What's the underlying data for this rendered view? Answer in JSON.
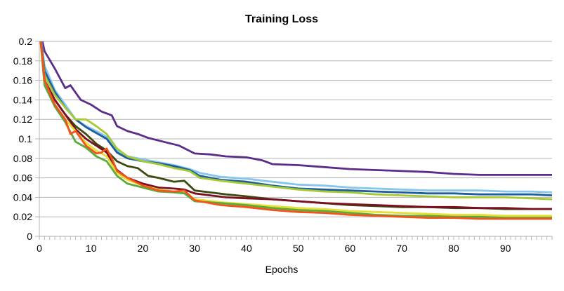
{
  "chart_data": {
    "type": "line",
    "title": "Training Loss",
    "xlabel": "Epochs",
    "ylabel": "",
    "xlim": [
      0,
      99
    ],
    "ylim": [
      0,
      0.2
    ],
    "x_ticks": [
      0,
      10,
      20,
      30,
      40,
      50,
      60,
      70,
      80,
      90
    ],
    "x_tick_labels": [
      "0",
      "10",
      "20",
      "30",
      "40",
      "50",
      "60",
      "70",
      "80",
      "90"
    ],
    "y_ticks": [
      0,
      0.02,
      0.04,
      0.06,
      0.08,
      0.1,
      0.12,
      0.14,
      0.16,
      0.18,
      0.2
    ],
    "y_tick_labels": [
      "0",
      "0.02",
      "0.04",
      "0.06",
      "0.08",
      "0.1",
      "0.12",
      "0.14",
      "0.16",
      "0.18",
      "0.2"
    ],
    "grid": true,
    "legend": "none",
    "series": [
      {
        "color": "#5b2c8a",
        "values": [
          [
            0,
            0.215
          ],
          [
            1,
            0.19
          ],
          [
            3,
            0.172
          ],
          [
            5,
            0.152
          ],
          [
            6,
            0.155
          ],
          [
            8,
            0.14
          ],
          [
            10,
            0.135
          ],
          [
            12,
            0.128
          ],
          [
            14,
            0.124
          ],
          [
            15,
            0.113
          ],
          [
            17,
            0.108
          ],
          [
            19,
            0.105
          ],
          [
            21,
            0.101
          ],
          [
            24,
            0.097
          ],
          [
            27,
            0.093
          ],
          [
            30,
            0.085
          ],
          [
            33,
            0.084
          ],
          [
            36,
            0.082
          ],
          [
            40,
            0.081
          ],
          [
            43,
            0.078
          ],
          [
            45,
            0.074
          ],
          [
            50,
            0.073
          ],
          [
            55,
            0.071
          ],
          [
            60,
            0.069
          ],
          [
            65,
            0.068
          ],
          [
            70,
            0.067
          ],
          [
            75,
            0.066
          ],
          [
            80,
            0.064
          ],
          [
            85,
            0.063
          ],
          [
            90,
            0.063
          ],
          [
            95,
            0.063
          ],
          [
            99,
            0.063
          ]
        ]
      },
      {
        "color": "#86c5ee",
        "values": [
          [
            0,
            0.215
          ],
          [
            1,
            0.175
          ],
          [
            3,
            0.15
          ],
          [
            5,
            0.135
          ],
          [
            7,
            0.12
          ],
          [
            9,
            0.113
          ],
          [
            11,
            0.108
          ],
          [
            13,
            0.102
          ],
          [
            15,
            0.088
          ],
          [
            17,
            0.082
          ],
          [
            20,
            0.079
          ],
          [
            23,
            0.076
          ],
          [
            26,
            0.073
          ],
          [
            29,
            0.069
          ],
          [
            31,
            0.065
          ],
          [
            35,
            0.061
          ],
          [
            40,
            0.059
          ],
          [
            45,
            0.056
          ],
          [
            50,
            0.053
          ],
          [
            55,
            0.052
          ],
          [
            60,
            0.05
          ],
          [
            65,
            0.049
          ],
          [
            70,
            0.048
          ],
          [
            75,
            0.047
          ],
          [
            80,
            0.047
          ],
          [
            85,
            0.047
          ],
          [
            90,
            0.046
          ],
          [
            95,
            0.046
          ],
          [
            99,
            0.045
          ]
        ]
      },
      {
        "color": "#1d5f9c",
        "values": [
          [
            0,
            0.215
          ],
          [
            1,
            0.17
          ],
          [
            3,
            0.148
          ],
          [
            5,
            0.132
          ],
          [
            7,
            0.12
          ],
          [
            9,
            0.112
          ],
          [
            11,
            0.106
          ],
          [
            13,
            0.1
          ],
          [
            15,
            0.086
          ],
          [
            17,
            0.08
          ],
          [
            20,
            0.077
          ],
          [
            23,
            0.075
          ],
          [
            26,
            0.072
          ],
          [
            29,
            0.068
          ],
          [
            31,
            0.062
          ],
          [
            35,
            0.058
          ],
          [
            40,
            0.056
          ],
          [
            45,
            0.052
          ],
          [
            50,
            0.049
          ],
          [
            55,
            0.048
          ],
          [
            60,
            0.047
          ],
          [
            65,
            0.046
          ],
          [
            70,
            0.045
          ],
          [
            75,
            0.044
          ],
          [
            80,
            0.044
          ],
          [
            85,
            0.043
          ],
          [
            90,
            0.043
          ],
          [
            95,
            0.043
          ],
          [
            99,
            0.042
          ]
        ]
      },
      {
        "color": "#a7c934",
        "values": [
          [
            0,
            0.215
          ],
          [
            1,
            0.165
          ],
          [
            3,
            0.145
          ],
          [
            5,
            0.132
          ],
          [
            7,
            0.12
          ],
          [
            9,
            0.12
          ],
          [
            11,
            0.113
          ],
          [
            13,
            0.105
          ],
          [
            15,
            0.09
          ],
          [
            17,
            0.082
          ],
          [
            20,
            0.077
          ],
          [
            23,
            0.074
          ],
          [
            26,
            0.07
          ],
          [
            29,
            0.067
          ],
          [
            31,
            0.06
          ],
          [
            35,
            0.057
          ],
          [
            40,
            0.054
          ],
          [
            45,
            0.051
          ],
          [
            50,
            0.048
          ],
          [
            55,
            0.046
          ],
          [
            60,
            0.045
          ],
          [
            65,
            0.043
          ],
          [
            70,
            0.042
          ],
          [
            75,
            0.041
          ],
          [
            80,
            0.04
          ],
          [
            85,
            0.04
          ],
          [
            90,
            0.04
          ],
          [
            95,
            0.039
          ],
          [
            99,
            0.038
          ]
        ]
      },
      {
        "color": "#3d4a0f",
        "values": [
          [
            0,
            0.215
          ],
          [
            1,
            0.16
          ],
          [
            3,
            0.14
          ],
          [
            5,
            0.125
          ],
          [
            7,
            0.113
          ],
          [
            9,
            0.105
          ],
          [
            11,
            0.095
          ],
          [
            13,
            0.088
          ],
          [
            15,
            0.077
          ],
          [
            17,
            0.072
          ],
          [
            19,
            0.07
          ],
          [
            21,
            0.062
          ],
          [
            23,
            0.06
          ],
          [
            26,
            0.056
          ],
          [
            28,
            0.057
          ],
          [
            30,
            0.047
          ],
          [
            33,
            0.045
          ],
          [
            36,
            0.043
          ],
          [
            40,
            0.041
          ],
          [
            45,
            0.038
          ],
          [
            50,
            0.036
          ],
          [
            55,
            0.034
          ],
          [
            60,
            0.032
          ],
          [
            65,
            0.031
          ],
          [
            70,
            0.03
          ],
          [
            75,
            0.03
          ],
          [
            80,
            0.029
          ],
          [
            85,
            0.029
          ],
          [
            90,
            0.028
          ],
          [
            95,
            0.028
          ],
          [
            99,
            0.028
          ]
        ]
      },
      {
        "color": "#7a1020",
        "values": [
          [
            0,
            0.215
          ],
          [
            1,
            0.16
          ],
          [
            3,
            0.14
          ],
          [
            5,
            0.125
          ],
          [
            7,
            0.11
          ],
          [
            9,
            0.1
          ],
          [
            11,
            0.093
          ],
          [
            13,
            0.086
          ],
          [
            15,
            0.068
          ],
          [
            17,
            0.06
          ],
          [
            20,
            0.054
          ],
          [
            23,
            0.05
          ],
          [
            26,
            0.049
          ],
          [
            28,
            0.048
          ],
          [
            30,
            0.044
          ],
          [
            33,
            0.042
          ],
          [
            36,
            0.04
          ],
          [
            40,
            0.039
          ],
          [
            45,
            0.038
          ],
          [
            50,
            0.036
          ],
          [
            55,
            0.034
          ],
          [
            60,
            0.033
          ],
          [
            65,
            0.032
          ],
          [
            70,
            0.031
          ],
          [
            75,
            0.03
          ],
          [
            80,
            0.03
          ],
          [
            85,
            0.029
          ],
          [
            90,
            0.029
          ],
          [
            95,
            0.028
          ],
          [
            99,
            0.028
          ]
        ]
      },
      {
        "color": "#e8e02e",
        "values": [
          [
            0,
            0.215
          ],
          [
            1,
            0.155
          ],
          [
            3,
            0.135
          ],
          [
            5,
            0.12
          ],
          [
            7,
            0.108
          ],
          [
            9,
            0.096
          ],
          [
            11,
            0.088
          ],
          [
            13,
            0.082
          ],
          [
            15,
            0.065
          ],
          [
            17,
            0.058
          ],
          [
            20,
            0.052
          ],
          [
            23,
            0.048
          ],
          [
            26,
            0.046
          ],
          [
            28,
            0.046
          ],
          [
            30,
            0.038
          ],
          [
            35,
            0.035
          ],
          [
            40,
            0.033
          ],
          [
            45,
            0.031
          ],
          [
            50,
            0.029
          ],
          [
            55,
            0.028
          ],
          [
            60,
            0.026
          ],
          [
            65,
            0.025
          ],
          [
            70,
            0.024
          ],
          [
            75,
            0.023
          ],
          [
            80,
            0.022
          ],
          [
            85,
            0.022
          ],
          [
            90,
            0.021
          ],
          [
            95,
            0.021
          ],
          [
            99,
            0.021
          ]
        ]
      },
      {
        "color": "#5aaa3c",
        "values": [
          [
            0,
            0.215
          ],
          [
            1,
            0.155
          ],
          [
            3,
            0.133
          ],
          [
            5,
            0.117
          ],
          [
            7,
            0.097
          ],
          [
            9,
            0.091
          ],
          [
            11,
            0.082
          ],
          [
            13,
            0.077
          ],
          [
            15,
            0.062
          ],
          [
            17,
            0.054
          ],
          [
            20,
            0.05
          ],
          [
            23,
            0.046
          ],
          [
            26,
            0.045
          ],
          [
            28,
            0.044
          ],
          [
            30,
            0.036
          ],
          [
            35,
            0.034
          ],
          [
            40,
            0.032
          ],
          [
            45,
            0.029
          ],
          [
            50,
            0.027
          ],
          [
            55,
            0.026
          ],
          [
            60,
            0.024
          ],
          [
            65,
            0.022
          ],
          [
            70,
            0.021
          ],
          [
            75,
            0.021
          ],
          [
            80,
            0.02
          ],
          [
            85,
            0.02
          ],
          [
            90,
            0.019
          ],
          [
            95,
            0.019
          ],
          [
            99,
            0.019
          ]
        ]
      },
      {
        "color": "#f4531c",
        "values": [
          [
            0,
            0.215
          ],
          [
            1,
            0.16
          ],
          [
            3,
            0.135
          ],
          [
            5,
            0.12
          ],
          [
            6,
            0.105
          ],
          [
            7,
            0.108
          ],
          [
            9,
            0.093
          ],
          [
            11,
            0.085
          ],
          [
            12,
            0.086
          ],
          [
            13,
            0.09
          ],
          [
            14,
            0.08
          ],
          [
            15,
            0.067
          ],
          [
            17,
            0.06
          ],
          [
            20,
            0.052
          ],
          [
            23,
            0.047
          ],
          [
            26,
            0.046
          ],
          [
            28,
            0.047
          ],
          [
            30,
            0.037
          ],
          [
            35,
            0.032
          ],
          [
            40,
            0.03
          ],
          [
            45,
            0.027
          ],
          [
            50,
            0.025
          ],
          [
            55,
            0.024
          ],
          [
            60,
            0.022
          ],
          [
            65,
            0.021
          ],
          [
            70,
            0.02
          ],
          [
            75,
            0.019
          ],
          [
            80,
            0.019
          ],
          [
            85,
            0.018
          ],
          [
            90,
            0.018
          ],
          [
            95,
            0.018
          ],
          [
            99,
            0.018
          ]
        ]
      }
    ]
  }
}
